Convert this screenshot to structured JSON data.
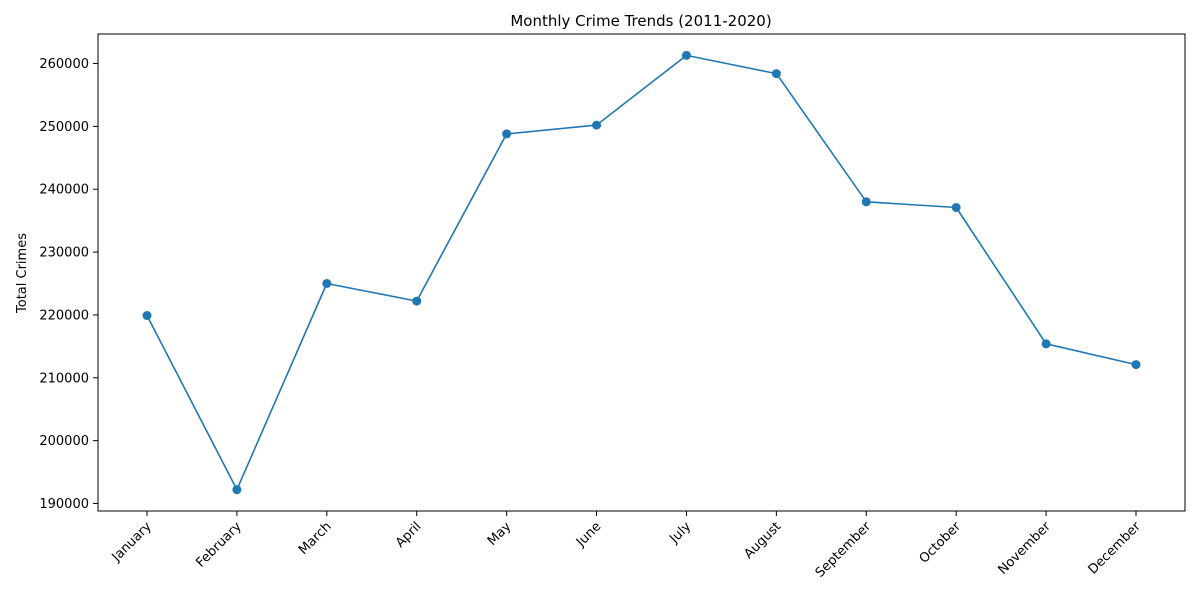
{
  "chart_data": {
    "type": "line",
    "title": "Monthly Crime Trends (2011-2020)",
    "xlabel": "",
    "ylabel": "Total Crimes",
    "categories": [
      "January",
      "February",
      "March",
      "April",
      "May",
      "June",
      "July",
      "August",
      "September",
      "October",
      "November",
      "December"
    ],
    "series": [
      {
        "values": [
          219900,
          192200,
          225000,
          222200,
          248800,
          250200,
          261300,
          258400,
          238000,
          237100,
          215400,
          212100
        ],
        "color": "#1f77b4",
        "marker": "circle"
      }
    ],
    "ylim": [
      188800,
      264700
    ],
    "yticks": [
      190000,
      200000,
      210000,
      220000,
      230000,
      240000,
      250000,
      260000
    ],
    "grid": false,
    "legend": "none"
  }
}
